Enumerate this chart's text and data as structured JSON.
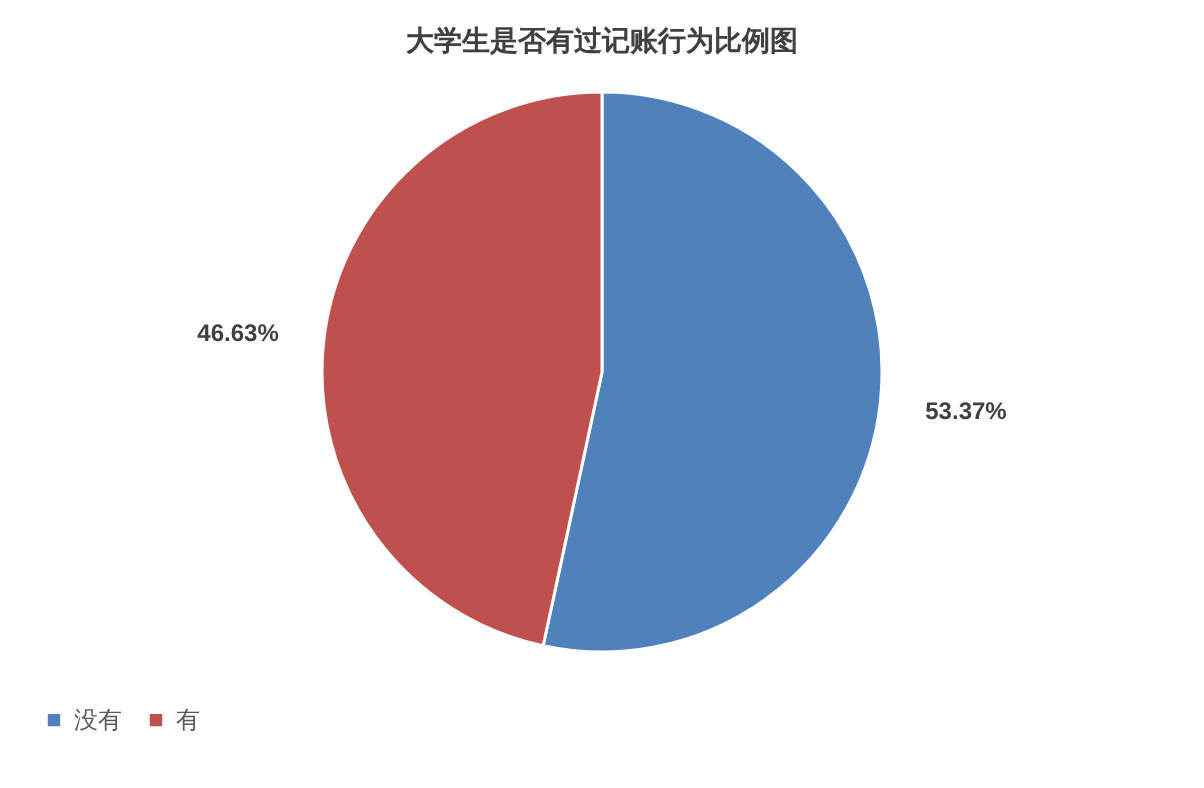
{
  "chart_data": {
    "type": "pie",
    "title": "大学生是否有过记账行为比例图",
    "categories": [
      "没有",
      "有"
    ],
    "values": [
      53.37,
      46.63
    ],
    "colors": [
      "#4f81bd",
      "#c0504d"
    ],
    "value_labels": [
      "53.37%",
      "46.63%"
    ],
    "legend": "bottom"
  }
}
